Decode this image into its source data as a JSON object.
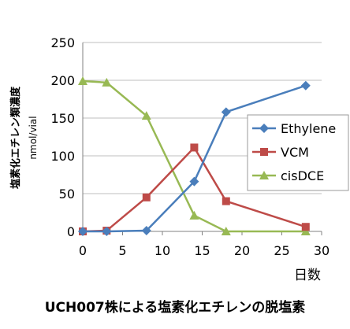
{
  "caption": "UCH007株による塩素化エチレンの脱塩素",
  "chart_data": {
    "type": "line",
    "title": "",
    "xlabel": "日数",
    "ylabel": "塩素化エチレン類濃度",
    "yunit": "nmol/vial",
    "xlim": [
      0,
      30
    ],
    "ylim": [
      0,
      250
    ],
    "xticks": [
      0,
      5,
      10,
      15,
      20,
      25,
      30
    ],
    "yticks": [
      0,
      50,
      100,
      150,
      200,
      250
    ],
    "grid": "horizontal",
    "legend": "right",
    "series": [
      {
        "name": "Ethylene",
        "color": "#4a7ebb",
        "marker": "diamond",
        "x": [
          0,
          3,
          8,
          14,
          18,
          28
        ],
        "y": [
          0,
          0,
          1,
          66,
          158,
          193
        ]
      },
      {
        "name": "VCM",
        "color": "#be4b48",
        "marker": "square",
        "x": [
          0,
          3,
          8,
          14,
          18,
          28
        ],
        "y": [
          0,
          1,
          45,
          111,
          40,
          6
        ]
      },
      {
        "name": "cisDCE",
        "color": "#98b954",
        "marker": "triangle",
        "x": [
          0,
          3,
          8,
          14,
          18,
          28
        ],
        "y": [
          199,
          197,
          153,
          21,
          0,
          0
        ]
      }
    ]
  }
}
